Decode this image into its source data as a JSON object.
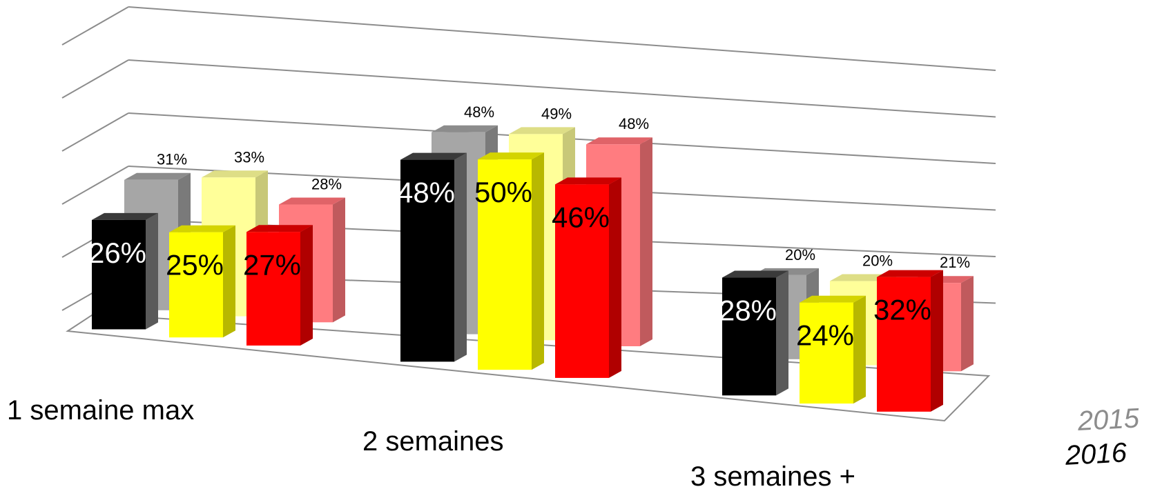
{
  "chart_data": {
    "type": "bar",
    "title": "",
    "xlabel": "",
    "ylabel": "",
    "ylim": [
      0,
      60
    ],
    "grid": true,
    "depth_rows": [
      "2015",
      "2016"
    ],
    "categories": [
      "1 semaine max",
      "2 semaines",
      "3 semaines +"
    ],
    "series": [
      {
        "year": "2016",
        "group": 0,
        "color": "#000000",
        "side": "#5a5a5a",
        "top": "#3a3a3a",
        "label_color": "#ffffff",
        "values": [
          26,
          48,
          28
        ],
        "labels": [
          "26%",
          "48%",
          "28%"
        ]
      },
      {
        "year": "2016",
        "group": 1,
        "color": "#ffff00",
        "side": "#b8b800",
        "top": "#d4d400",
        "label_color": "#000000",
        "values": [
          25,
          50,
          24
        ],
        "labels": [
          "25%",
          "50%",
          "24%"
        ]
      },
      {
        "year": "2016",
        "group": 2,
        "color": "#ff0000",
        "side": "#b00000",
        "top": "#cc0000",
        "label_color": "#000000",
        "values": [
          27,
          46,
          32
        ],
        "labels": [
          "27%",
          "46%",
          "32%"
        ]
      },
      {
        "year": "2015",
        "group": 0,
        "color": "#a6a6a6",
        "side": "#7a7a7a",
        "top": "#8c8c8c",
        "label_color": "#000000",
        "values": [
          31,
          48,
          20
        ],
        "labels": [
          "31%",
          "48%",
          "20%"
        ]
      },
      {
        "year": "2015",
        "group": 1,
        "color": "#ffff99",
        "side": "#c8c878",
        "top": "#dede86",
        "label_color": "#000000",
        "values": [
          33,
          49,
          20
        ],
        "labels": [
          "33%",
          "49%",
          "20%"
        ]
      },
      {
        "year": "2015",
        "group": 2,
        "color": "#ff7c80",
        "side": "#c05a5d",
        "top": "#e06368",
        "label_color": "#000000",
        "values": [
          28,
          48,
          21
        ],
        "labels": [
          "28%",
          "48%",
          "21%"
        ]
      }
    ]
  }
}
